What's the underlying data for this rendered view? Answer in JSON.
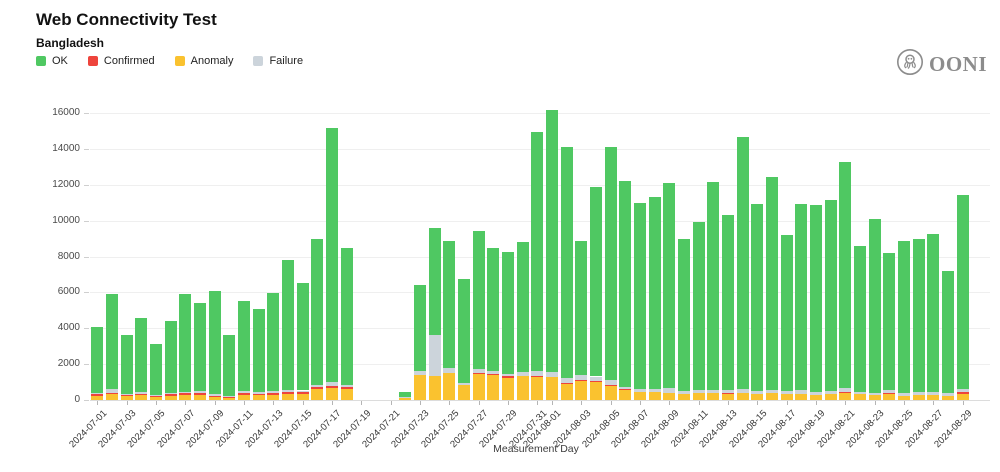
{
  "header": {
    "title": "Web Connectivity Test",
    "subtitle": "Bangladesh"
  },
  "logo": {
    "text": "OONI"
  },
  "legend": {
    "items": [
      {
        "label": "OK",
        "color": "#4fc862"
      },
      {
        "label": "Confirmed",
        "color": "#ee443c"
      },
      {
        "label": "Anomaly",
        "color": "#fac22f"
      },
      {
        "label": "Failure",
        "color": "#ccd4db"
      }
    ]
  },
  "axes": {
    "xlabel": "Measurement Day",
    "yticks": [
      0,
      2000,
      4000,
      6000,
      8000,
      10000,
      12000,
      14000,
      16000
    ]
  },
  "chart_data": {
    "type": "bar",
    "stacked": true,
    "title": "Web Connectivity Test",
    "subtitle": "Bangladesh",
    "xlabel": "Measurement Day",
    "ylabel": "",
    "ylim": [
      0,
      16500
    ],
    "grid": true,
    "legend_position": "top-left",
    "stack_order_bottom_to_top": [
      "Anomaly",
      "Confirmed",
      "Failure",
      "OK"
    ],
    "x": [
      "2024-07-01",
      "2024-07-02",
      "2024-07-03",
      "2024-07-04",
      "2024-07-05",
      "2024-07-06",
      "2024-07-07",
      "2024-07-08",
      "2024-07-09",
      "2024-07-10",
      "2024-07-11",
      "2024-07-12",
      "2024-07-13",
      "2024-07-14",
      "2024-07-15",
      "2024-07-16",
      "2024-07-17",
      "2024-07-18",
      "2024-07-19",
      "2024-07-20",
      "2024-07-21",
      "2024-07-22",
      "2024-07-23",
      "2024-07-24",
      "2024-07-25",
      "2024-07-26",
      "2024-07-27",
      "2024-07-28",
      "2024-07-29",
      "2024-07-30",
      "2024-07-31",
      "2024-08-01",
      "2024-08-02",
      "2024-08-03",
      "2024-08-04",
      "2024-08-05",
      "2024-08-06",
      "2024-08-07",
      "2024-08-08",
      "2024-08-09",
      "2024-08-10",
      "2024-08-11",
      "2024-08-12",
      "2024-08-13",
      "2024-08-14",
      "2024-08-15",
      "2024-08-16",
      "2024-08-17",
      "2024-08-18",
      "2024-08-19",
      "2024-08-20",
      "2024-08-21",
      "2024-08-22",
      "2024-08-23",
      "2024-08-24",
      "2024-08-25",
      "2024-08-26",
      "2024-08-27",
      "2024-08-28",
      "2024-08-29"
    ],
    "x_tick_labels": [
      "2024-07-01",
      "2024-07-03",
      "2024-07-05",
      "2024-07-07",
      "2024-07-09",
      "2024-07-11",
      "2024-07-13",
      "2024-07-15",
      "2024-07-17",
      "2024-07-19",
      "2024-07-21",
      "2024-07-23",
      "2024-07-25",
      "2024-07-27",
      "2024-07-29",
      "2024-07-31",
      "2024-08-01",
      "2024-08-03",
      "2024-08-05",
      "2024-08-07",
      "2024-08-09",
      "2024-08-11",
      "2024-08-13",
      "2024-08-15",
      "2024-08-17",
      "2024-08-19",
      "2024-08-21",
      "2024-08-23",
      "2024-08-25",
      "2024-08-27",
      "2024-08-29"
    ],
    "series": [
      {
        "name": "Anomaly",
        "color": "#fac22f",
        "values": [
          250,
          320,
          200,
          280,
          180,
          250,
          300,
          300,
          200,
          150,
          300,
          280,
          300,
          350,
          350,
          600,
          650,
          600,
          0,
          0,
          0,
          120,
          1400,
          1350,
          1500,
          820,
          1450,
          1400,
          1250,
          1350,
          1300,
          1270,
          900,
          1050,
          1000,
          800,
          550,
          420,
          420,
          400,
          350,
          400,
          380,
          350,
          400,
          350,
          380,
          350,
          350,
          300,
          350,
          380,
          320,
          280,
          320,
          250,
          280,
          300,
          250,
          350
        ]
      },
      {
        "name": "Confirmed",
        "color": "#ee443c",
        "values": [
          80,
          90,
          60,
          70,
          50,
          60,
          80,
          100,
          50,
          40,
          80,
          70,
          80,
          90,
          80,
          100,
          130,
          100,
          0,
          0,
          0,
          0,
          0,
          0,
          0,
          0,
          80,
          60,
          70,
          0,
          60,
          0,
          50,
          40,
          60,
          50,
          60,
          0,
          0,
          0,
          0,
          0,
          0,
          60,
          0,
          0,
          0,
          0,
          0,
          0,
          0,
          60,
          0,
          0,
          80,
          0,
          0,
          0,
          0,
          80
        ]
      },
      {
        "name": "Failure",
        "color": "#ccd4db",
        "values": [
          70,
          180,
          70,
          80,
          50,
          100,
          90,
          80,
          90,
          60,
          100,
          80,
          100,
          110,
          100,
          150,
          200,
          150,
          0,
          0,
          0,
          30,
          200,
          2250,
          300,
          150,
          200,
          150,
          150,
          200,
          250,
          300,
          250,
          280,
          250,
          250,
          120,
          180,
          200,
          250,
          150,
          150,
          200,
          150,
          200,
          150,
          200,
          150,
          200,
          150,
          150,
          250,
          150,
          120,
          150,
          120,
          150,
          120,
          150,
          180
        ]
      },
      {
        "name": "OK",
        "color": "#4fc862",
        "values": [
          3650,
          5310,
          3320,
          4120,
          2820,
          3990,
          5430,
          4920,
          5710,
          3350,
          5020,
          4670,
          5470,
          7250,
          5970,
          8150,
          14170,
          7600,
          0,
          0,
          0,
          300,
          4800,
          6000,
          7050,
          5780,
          7670,
          6890,
          6780,
          7250,
          13340,
          14580,
          12900,
          7480,
          10590,
          13000,
          11470,
          10400,
          10680,
          11450,
          8450,
          9400,
          11570,
          9740,
          14050,
          10400,
          11870,
          8700,
          10400,
          10400,
          10650,
          12560,
          8130,
          9700,
          7650,
          8480,
          8520,
          8830,
          6800,
          10840
        ]
      }
    ]
  }
}
